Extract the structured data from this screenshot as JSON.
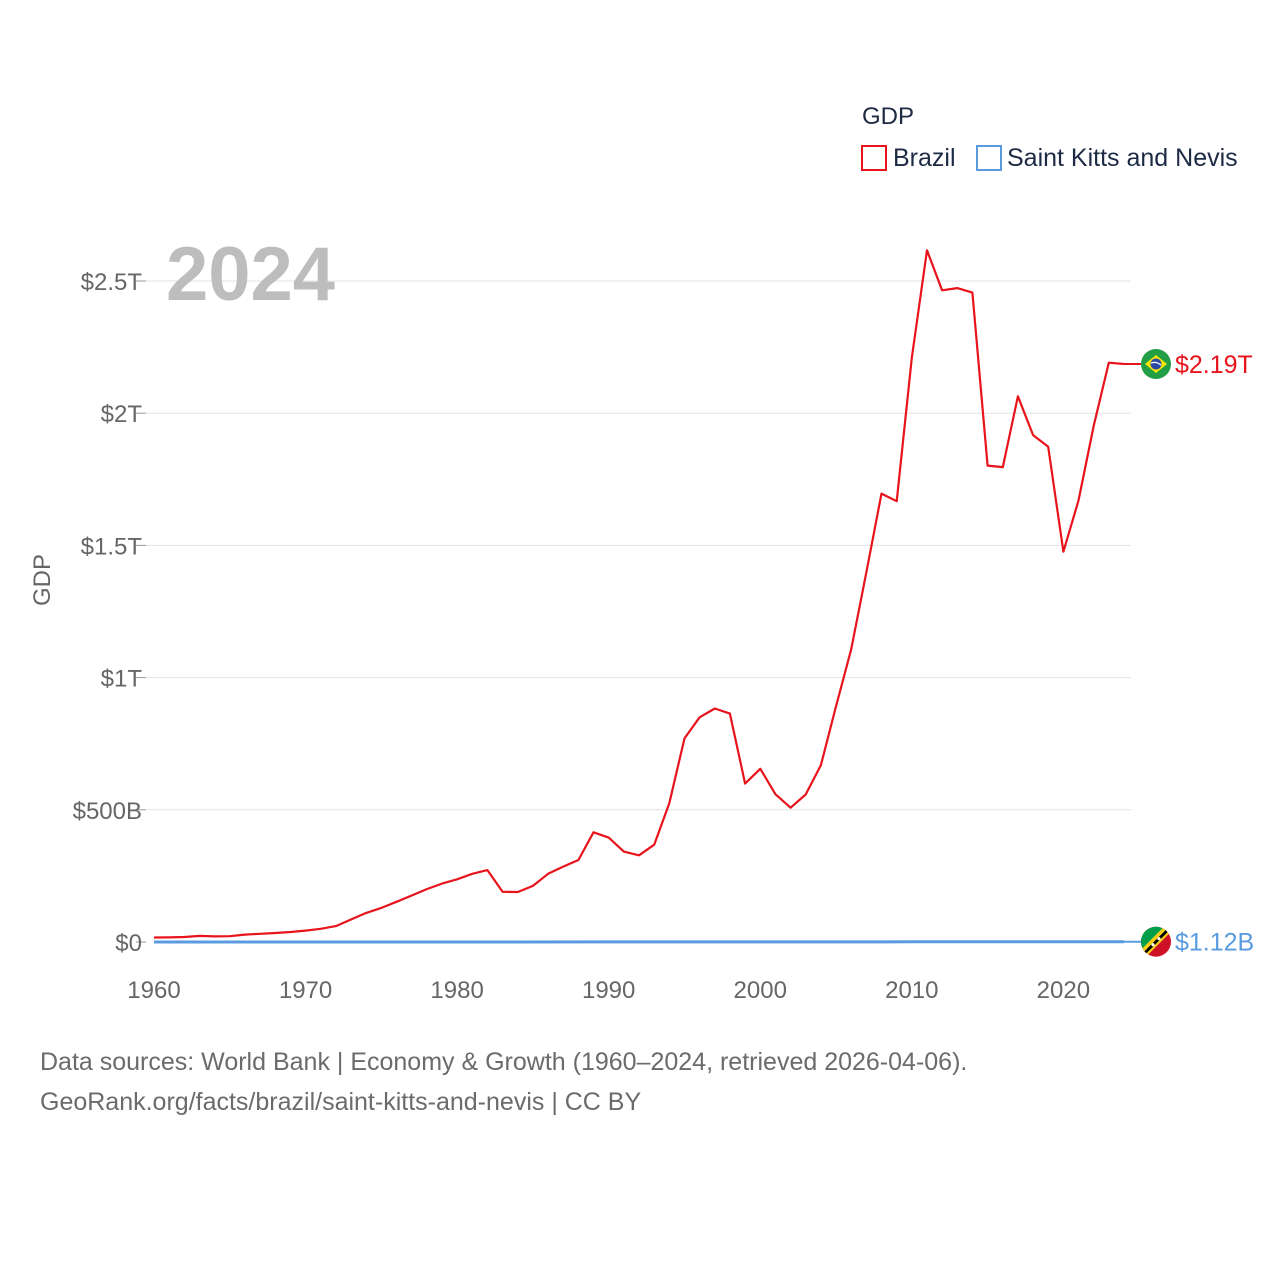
{
  "chart_data": {
    "type": "line",
    "year_label": "2024",
    "ylabel": "GDP",
    "xlabel": "",
    "ylim": [
      0,
      2500000000000
    ],
    "xlim": [
      1960,
      2024
    ],
    "y_ticks": [
      {
        "value": 0,
        "label": "$0"
      },
      {
        "value": 500000000000,
        "label": "$500B"
      },
      {
        "value": 1000000000000,
        "label": "$1T"
      },
      {
        "value": 1500000000000,
        "label": "$1.5T"
      },
      {
        "value": 2000000000000,
        "label": "$2T"
      },
      {
        "value": 2500000000000,
        "label": "$2.5T"
      }
    ],
    "x_ticks": [
      {
        "value": 1960,
        "label": "1960"
      },
      {
        "value": 1970,
        "label": "1970"
      },
      {
        "value": 1980,
        "label": "1980"
      },
      {
        "value": 1990,
        "label": "1990"
      },
      {
        "value": 2000,
        "label": "2000"
      },
      {
        "value": 2010,
        "label": "2010"
      },
      {
        "value": 2020,
        "label": "2020"
      }
    ],
    "legend": {
      "title": "GDP",
      "position": "top-right"
    },
    "series": [
      {
        "name": "Brazil",
        "color": "#e8141c",
        "end_label": "$2.19T",
        "flag": "brazil-flag",
        "x": [
          1960,
          1961,
          1962,
          1963,
          1964,
          1965,
          1966,
          1967,
          1968,
          1969,
          1970,
          1971,
          1972,
          1973,
          1974,
          1975,
          1976,
          1977,
          1978,
          1979,
          1980,
          1981,
          1982,
          1983,
          1984,
          1985,
          1986,
          1987,
          1988,
          1989,
          1990,
          1991,
          1992,
          1993,
          1994,
          1995,
          1996,
          1997,
          1998,
          1999,
          2000,
          2001,
          2002,
          2003,
          2004,
          2005,
          2006,
          2007,
          2008,
          2009,
          2010,
          2011,
          2012,
          2013,
          2014,
          2015,
          2016,
          2017,
          2018,
          2019,
          2020,
          2021,
          2022,
          2023,
          2024
        ],
        "values": [
          17000000000.0,
          17500000000.0,
          19000000000.0,
          23000000000.0,
          21000000000.0,
          22000000000.0,
          28000000000.0,
          31000000000.0,
          34000000000.0,
          38000000000.0,
          43000000000.0,
          50000000000.0,
          60000000000.0,
          85000000000.0,
          110000000000.0,
          129000000000.0,
          152000000000.0,
          176000000000.0,
          200000000000.0,
          221000000000.0,
          237000000000.0,
          258000000000.0,
          272000000000.0,
          190000000000.0,
          189000000000.0,
          212000000000.0,
          258000000000.0,
          285000000000.0,
          310000000000.0,
          415000000000.0,
          395000000000.0,
          342000000000.0,
          328000000000.0,
          368000000000.0,
          525000000000.0,
          770000000000.0,
          850000000000.0,
          883000000000.0,
          864000000000.0,
          599000000000.0,
          655000000000.0,
          559000000000.0,
          508000000000.0,
          558000000000.0,
          669000000000.0,
          891000000000.0,
          1107000000000.0,
          1397000000000.0,
          1696000000000.0,
          1667000000000.0,
          2209000000000.0,
          2616000000000.0,
          2465000000000.0,
          2473000000000.0,
          2456000000000.0,
          1802000000000.0,
          1796000000000.0,
          2064000000000.0,
          1917000000000.0,
          1873000000000.0,
          1476000000000.0,
          1670000000000.0,
          1952000000000.0,
          2191000000000.0,
          2186000000000.0
        ]
      },
      {
        "name": "Saint Kitts and Nevis",
        "color": "#5a9be0",
        "end_label": "$1.12B",
        "flag": "saint-kitts-and-nevis-flag",
        "x": [
          1960,
          1970,
          1980,
          1990,
          2000,
          2010,
          2020,
          2024
        ],
        "values": [
          12000000.0,
          20000000.0,
          100000000.0,
          200000000.0,
          500000000.0,
          800000000.0,
          900000000.0,
          1120000000.0
        ]
      }
    ]
  },
  "footer": {
    "source_line": "Data sources: World Bank | Economy & Growth (1960–2024, retrieved 2026-04-06).",
    "credit_line": "GeoRank.org/facts/brazil/saint-kitts-and-nevis | CC BY"
  }
}
